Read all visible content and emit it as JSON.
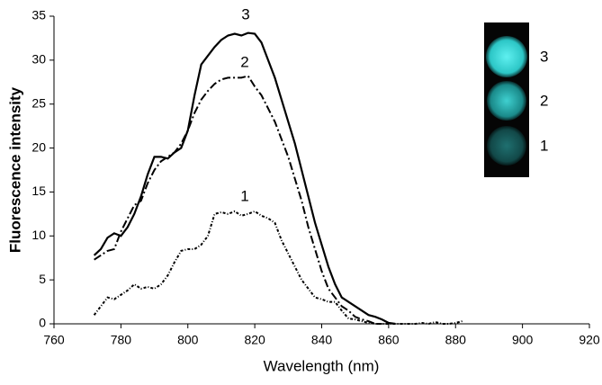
{
  "chart_data": {
    "type": "line",
    "xlabel": "Wavelength (nm)",
    "ylabel": "Fluorescence intensity",
    "x": [
      772,
      774,
      776,
      778,
      780,
      782,
      784,
      786,
      788,
      790,
      792,
      794,
      796,
      798,
      800,
      802,
      804,
      806,
      808,
      810,
      812,
      814,
      816,
      818,
      820,
      822,
      824,
      826,
      828,
      830,
      832,
      834,
      836,
      838,
      840,
      842,
      844,
      846,
      848,
      850,
      852,
      854,
      856,
      858,
      860,
      862,
      864,
      866,
      868,
      870,
      872,
      874,
      876,
      878,
      880,
      882
    ],
    "series": [
      {
        "name": "1",
        "color": "#000000",
        "line_style": "dotted",
        "values": [
          1,
          2,
          3,
          2.8,
          3.3,
          3.8,
          4.5,
          4,
          4.2,
          4,
          4.5,
          5.5,
          7,
          8.3,
          8.5,
          8.5,
          9,
          10,
          12.5,
          12.7,
          12.5,
          12.8,
          12.3,
          12.5,
          12.8,
          12.3,
          12,
          11.5,
          9.5,
          8,
          6.5,
          5,
          4,
          3,
          2.8,
          2.5,
          2.5,
          1.5,
          0.6,
          0.5,
          0.3,
          0.1,
          0,
          0,
          0,
          0,
          0,
          0,
          0,
          0.1,
          0,
          0.2,
          0,
          0,
          0.1,
          0.3
        ]
      },
      {
        "name": "2",
        "color": "#000000",
        "line_style": "dashdot",
        "values": [
          7.3,
          7.8,
          8.3,
          8.5,
          10.5,
          12,
          13.5,
          14,
          16,
          17.5,
          18.5,
          19,
          19.5,
          20.5,
          22,
          24,
          25.5,
          26.5,
          27.3,
          27.8,
          28,
          28,
          28,
          28.2,
          27,
          26,
          24.5,
          23,
          21,
          19,
          16.5,
          14,
          11,
          8.5,
          6,
          4,
          3,
          2,
          1.5,
          0.8,
          0.5,
          0.3,
          0,
          0,
          null,
          null,
          null,
          null,
          null,
          null,
          null,
          null,
          null,
          null,
          null,
          null
        ]
      },
      {
        "name": "3",
        "color": "#000000",
        "line_style": "solid",
        "values": [
          7.8,
          8.5,
          9.8,
          10.3,
          10,
          11,
          12.5,
          14.5,
          17,
          19,
          19,
          18.8,
          19.5,
          20,
          22,
          26,
          29.5,
          30.5,
          31.5,
          32.3,
          32.8,
          33,
          32.8,
          33.1,
          33,
          32,
          30,
          28,
          25.5,
          23,
          20.5,
          17.5,
          14.5,
          11.5,
          9,
          6.5,
          4.5,
          3,
          2.5,
          2,
          1.5,
          1,
          0.8,
          0.5,
          0.1,
          0,
          null,
          null,
          null,
          null,
          null,
          null,
          null,
          null,
          null,
          null
        ]
      }
    ],
    "xlim": [
      760,
      920
    ],
    "xticks": [
      760,
      780,
      800,
      820,
      840,
      860,
      880,
      900,
      920
    ],
    "ylim": [
      0,
      35
    ],
    "yticks": [
      0,
      5,
      10,
      15,
      20,
      25,
      30,
      35
    ],
    "grid": false
  }
}
